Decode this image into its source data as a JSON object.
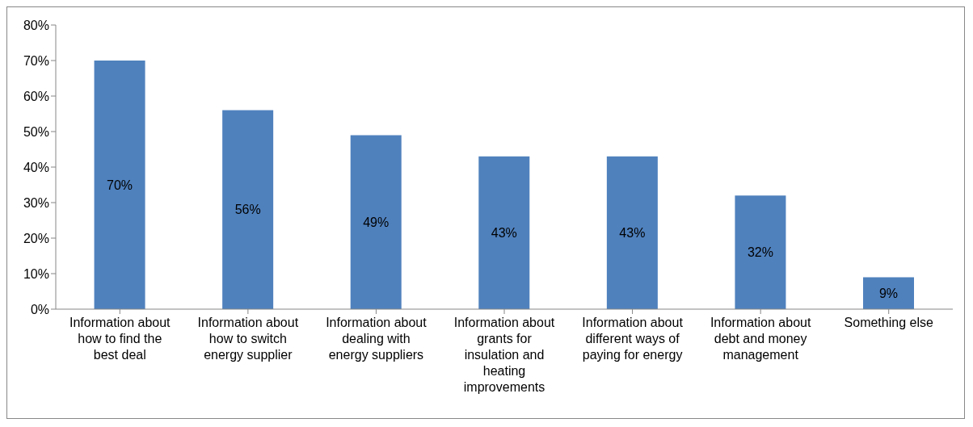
{
  "chart_data": {
    "type": "bar",
    "categories": [
      "Information about how to find the best deal",
      "Information about how to switch energy supplier",
      "Information about dealing with energy suppliers",
      "Information about grants for insulation and heating improvements",
      "Information about different ways of paying for energy",
      "Information about debt and money management",
      "Something else"
    ],
    "values": [
      70,
      56,
      49,
      43,
      43,
      32,
      9
    ],
    "value_labels": [
      "70%",
      "56%",
      "49%",
      "43%",
      "43%",
      "32%",
      "9%"
    ],
    "color": "#4f81bd",
    "ylim": [
      0,
      80
    ],
    "yticks": [
      {
        "value": 0,
        "label": "0%"
      },
      {
        "value": 10,
        "label": "10%"
      },
      {
        "value": 20,
        "label": "20%"
      },
      {
        "value": 30,
        "label": "30%"
      },
      {
        "value": 40,
        "label": "40%"
      },
      {
        "value": 50,
        "label": "50%"
      },
      {
        "value": 60,
        "label": "60%"
      },
      {
        "value": 70,
        "label": "70%"
      },
      {
        "value": 80,
        "label": "80%"
      }
    ],
    "grid": false,
    "legend": false
  }
}
